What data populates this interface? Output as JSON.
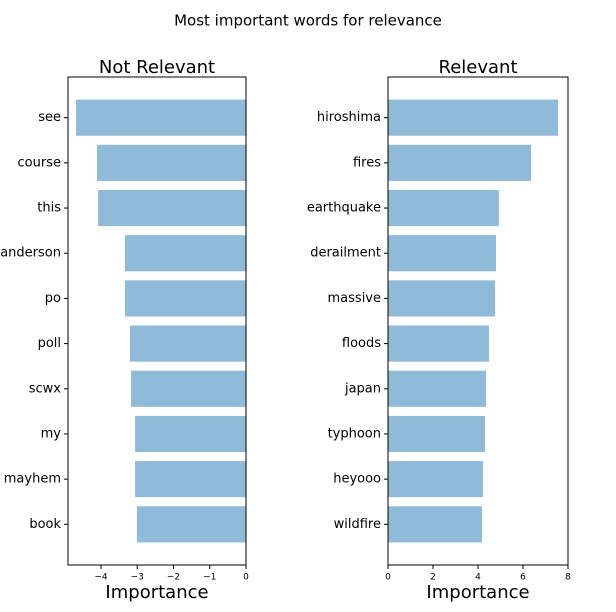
{
  "title": "Most important words for relevance",
  "chart_data": [
    {
      "type": "bar",
      "orientation": "horizontal",
      "title": "Not Relevant",
      "xlabel": "Importance",
      "categories": [
        "see",
        "course",
        "this",
        "anderson",
        "po",
        "poll",
        "scwx",
        "my",
        "mayhem",
        "book"
      ],
      "values": [
        -4.69,
        -4.11,
        -4.08,
        -3.34,
        -3.34,
        -3.2,
        -3.17,
        -3.06,
        -3.06,
        -3.01
      ],
      "color": "#8fbbd9",
      "xlim": [
        -4.91,
        0
      ],
      "xticks": [
        {
          "value": -4,
          "label": "−4"
        },
        {
          "value": -3,
          "label": "−3"
        },
        {
          "value": -2,
          "label": "−2"
        },
        {
          "value": -1,
          "label": "−1"
        },
        0
      ]
    },
    {
      "type": "bar",
      "orientation": "horizontal",
      "title": "Relevant",
      "xlabel": "Importance",
      "categories": [
        "hiroshima",
        "fires",
        "earthquake",
        "derailment",
        "massive",
        "floods",
        "japan",
        "typhoon",
        "heyooo",
        "wildfire"
      ],
      "values": [
        7.56,
        6.36,
        4.93,
        4.8,
        4.76,
        4.49,
        4.36,
        4.31,
        4.22,
        4.18
      ],
      "color": "#8fbbd9",
      "xlim": [
        0,
        8
      ],
      "xticks": [
        0,
        2,
        4,
        6,
        8
      ]
    }
  ]
}
